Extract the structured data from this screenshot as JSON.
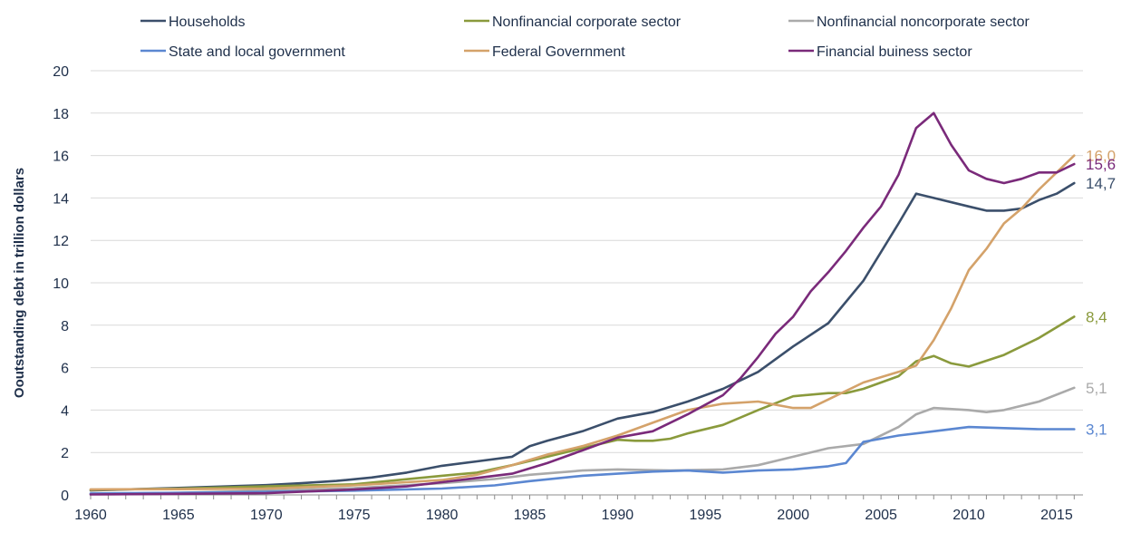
{
  "chart_data": {
    "type": "line",
    "title": "",
    "xlabel": "",
    "ylabel": "Ooutstanding debt in trillion dollars",
    "xlim": [
      1960,
      2016.5
    ],
    "ylim": [
      0,
      20
    ],
    "x_ticks": [
      "1960",
      "1965",
      "1970",
      "1975",
      "1980",
      "1985",
      "1990",
      "1995",
      "2000",
      "2005",
      "2010",
      "2015"
    ],
    "y_ticks": [
      "0",
      "2",
      "4",
      "6",
      "8",
      "10",
      "12",
      "14",
      "16",
      "18",
      "20"
    ],
    "grid": "horizontal",
    "legend_position": "top",
    "series": [
      {
        "name": "Households",
        "color": "#3b4f6b",
        "end_label": "14,7",
        "points": [
          [
            1960,
            0.21
          ],
          [
            1965,
            0.33
          ],
          [
            1970,
            0.46
          ],
          [
            1972,
            0.55
          ],
          [
            1974,
            0.66
          ],
          [
            1976,
            0.82
          ],
          [
            1978,
            1.05
          ],
          [
            1980,
            1.37
          ],
          [
            1982,
            1.58
          ],
          [
            1984,
            1.8
          ],
          [
            1985,
            2.3
          ],
          [
            1986,
            2.55
          ],
          [
            1988,
            3.0
          ],
          [
            1990,
            3.6
          ],
          [
            1992,
            3.9
          ],
          [
            1994,
            4.4
          ],
          [
            1996,
            5.0
          ],
          [
            1998,
            5.8
          ],
          [
            2000,
            7.0
          ],
          [
            2002,
            8.1
          ],
          [
            2004,
            10.1
          ],
          [
            2006,
            12.8
          ],
          [
            2007,
            14.2
          ],
          [
            2008,
            14.0
          ],
          [
            2010,
            13.6
          ],
          [
            2011,
            13.4
          ],
          [
            2012,
            13.4
          ],
          [
            2013,
            13.5
          ],
          [
            2014,
            13.9
          ],
          [
            2015,
            14.2
          ],
          [
            2016,
            14.7
          ]
        ]
      },
      {
        "name": "Nonfinancial corporate  sector",
        "color": "#8a9a3c",
        "end_label": "8,4",
        "points": [
          [
            1960,
            0.24
          ],
          [
            1965,
            0.3
          ],
          [
            1970,
            0.4
          ],
          [
            1975,
            0.5
          ],
          [
            1980,
            0.9
          ],
          [
            1982,
            1.05
          ],
          [
            1984,
            1.4
          ],
          [
            1986,
            1.8
          ],
          [
            1988,
            2.2
          ],
          [
            1990,
            2.6
          ],
          [
            1991,
            2.55
          ],
          [
            1992,
            2.55
          ],
          [
            1993,
            2.65
          ],
          [
            1994,
            2.9
          ],
          [
            1996,
            3.3
          ],
          [
            1998,
            4.0
          ],
          [
            2000,
            4.65
          ],
          [
            2002,
            4.8
          ],
          [
            2003,
            4.8
          ],
          [
            2004,
            5.0
          ],
          [
            2006,
            5.6
          ],
          [
            2007,
            6.3
          ],
          [
            2008,
            6.55
          ],
          [
            2009,
            6.2
          ],
          [
            2010,
            6.05
          ],
          [
            2012,
            6.6
          ],
          [
            2014,
            7.4
          ],
          [
            2016,
            8.4
          ]
        ]
      },
      {
        "name": "Nonfinancial noncorporate sector",
        "color": "#aaaaaa",
        "end_label": "5,1",
        "points": [
          [
            1960,
            0.05
          ],
          [
            1965,
            0.1
          ],
          [
            1970,
            0.2
          ],
          [
            1975,
            0.32
          ],
          [
            1980,
            0.55
          ],
          [
            1983,
            0.75
          ],
          [
            1985,
            0.95
          ],
          [
            1988,
            1.15
          ],
          [
            1990,
            1.2
          ],
          [
            1993,
            1.15
          ],
          [
            1996,
            1.2
          ],
          [
            1998,
            1.4
          ],
          [
            2000,
            1.8
          ],
          [
            2002,
            2.2
          ],
          [
            2004,
            2.4
          ],
          [
            2006,
            3.2
          ],
          [
            2007,
            3.8
          ],
          [
            2008,
            4.1
          ],
          [
            2010,
            4.0
          ],
          [
            2011,
            3.9
          ],
          [
            2012,
            4.0
          ],
          [
            2014,
            4.4
          ],
          [
            2016,
            5.05
          ]
        ]
      },
      {
        "name": "State and local government",
        "color": "#5b87d1",
        "end_label": "3,1",
        "points": [
          [
            1960,
            0.07
          ],
          [
            1965,
            0.1
          ],
          [
            1970,
            0.14
          ],
          [
            1975,
            0.2
          ],
          [
            1980,
            0.3
          ],
          [
            1983,
            0.45
          ],
          [
            1985,
            0.65
          ],
          [
            1988,
            0.9
          ],
          [
            1990,
            1.0
          ],
          [
            1992,
            1.1
          ],
          [
            1994,
            1.15
          ],
          [
            1996,
            1.05
          ],
          [
            1998,
            1.15
          ],
          [
            2000,
            1.2
          ],
          [
            2002,
            1.35
          ],
          [
            2003,
            1.5
          ],
          [
            2004,
            2.5
          ],
          [
            2006,
            2.8
          ],
          [
            2008,
            3.0
          ],
          [
            2010,
            3.2
          ],
          [
            2012,
            3.15
          ],
          [
            2014,
            3.1
          ],
          [
            2016,
            3.1
          ]
        ]
      },
      {
        "name": "Federal Government",
        "color": "#d4a26a",
        "end_label": "16,0",
        "points": [
          [
            1960,
            0.26
          ],
          [
            1965,
            0.27
          ],
          [
            1970,
            0.3
          ],
          [
            1975,
            0.45
          ],
          [
            1978,
            0.6
          ],
          [
            1980,
            0.7
          ],
          [
            1982,
            0.95
          ],
          [
            1984,
            1.4
          ],
          [
            1986,
            1.9
          ],
          [
            1988,
            2.3
          ],
          [
            1990,
            2.8
          ],
          [
            1992,
            3.4
          ],
          [
            1994,
            4.0
          ],
          [
            1996,
            4.3
          ],
          [
            1998,
            4.4
          ],
          [
            2000,
            4.1
          ],
          [
            2001,
            4.1
          ],
          [
            2002,
            4.5
          ],
          [
            2004,
            5.3
          ],
          [
            2006,
            5.8
          ],
          [
            2007,
            6.1
          ],
          [
            2008,
            7.3
          ],
          [
            2009,
            8.8
          ],
          [
            2010,
            10.6
          ],
          [
            2011,
            11.6
          ],
          [
            2012,
            12.8
          ],
          [
            2013,
            13.5
          ],
          [
            2014,
            14.4
          ],
          [
            2015,
            15.2
          ],
          [
            2016,
            16.0
          ]
        ]
      },
      {
        "name": "Financial buiness sector",
        "color": "#7a2a7a",
        "end_label": "15,6",
        "points": [
          [
            1960,
            0.02
          ],
          [
            1965,
            0.05
          ],
          [
            1970,
            0.08
          ],
          [
            1975,
            0.25
          ],
          [
            1978,
            0.4
          ],
          [
            1980,
            0.6
          ],
          [
            1982,
            0.8
          ],
          [
            1984,
            1.0
          ],
          [
            1986,
            1.5
          ],
          [
            1988,
            2.1
          ],
          [
            1990,
            2.7
          ],
          [
            1992,
            3.0
          ],
          [
            1994,
            3.8
          ],
          [
            1996,
            4.7
          ],
          [
            1997,
            5.5
          ],
          [
            1998,
            6.5
          ],
          [
            1999,
            7.6
          ],
          [
            2000,
            8.4
          ],
          [
            2001,
            9.6
          ],
          [
            2002,
            10.5
          ],
          [
            2003,
            11.5
          ],
          [
            2004,
            12.6
          ],
          [
            2005,
            13.6
          ],
          [
            2006,
            15.1
          ],
          [
            2007,
            17.3
          ],
          [
            2008,
            18.0
          ],
          [
            2009,
            16.5
          ],
          [
            2010,
            15.3
          ],
          [
            2011,
            14.9
          ],
          [
            2012,
            14.7
          ],
          [
            2013,
            14.9
          ],
          [
            2014,
            15.2
          ],
          [
            2015,
            15.2
          ],
          [
            2016,
            15.6
          ]
        ]
      }
    ]
  }
}
